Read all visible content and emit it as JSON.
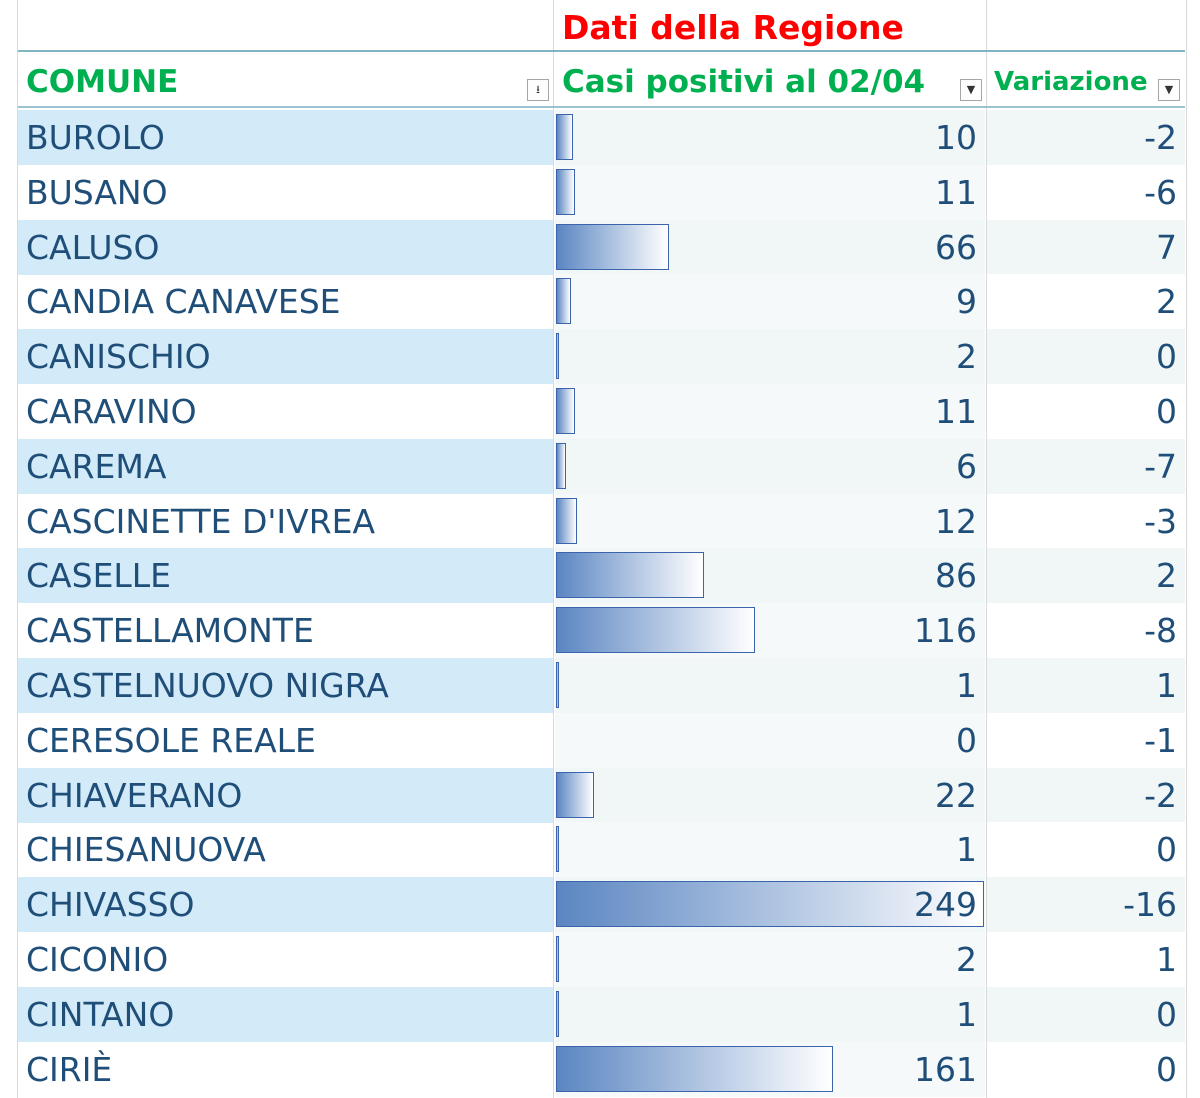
{
  "header": {
    "region_title": "Dati della Regione",
    "col_comune": "COMUNE",
    "col_casi": "Casi positivi al 02/04",
    "col_variazione": "Variazione",
    "filter_sort_glyph": "⭳",
    "filter_glyph": "▼"
  },
  "bar_max": 249,
  "rows": [
    {
      "comune": "BUROLO",
      "casi": 10,
      "variazione": "-2"
    },
    {
      "comune": "BUSANO",
      "casi": 11,
      "variazione": "-6"
    },
    {
      "comune": "CALUSO",
      "casi": 66,
      "variazione": "7"
    },
    {
      "comune": "CANDIA CANAVESE",
      "casi": 9,
      "variazione": "2"
    },
    {
      "comune": "CANISCHIO",
      "casi": 2,
      "variazione": "0"
    },
    {
      "comune": "CARAVINO",
      "casi": 11,
      "variazione": "0"
    },
    {
      "comune": "CAREMA",
      "casi": 6,
      "variazione": "-7"
    },
    {
      "comune": "CASCINETTE D'IVREA",
      "casi": 12,
      "variazione": "-3"
    },
    {
      "comune": "CASELLE",
      "casi": 86,
      "variazione": "2"
    },
    {
      "comune": "CASTELLAMONTE",
      "casi": 116,
      "variazione": "-8"
    },
    {
      "comune": "CASTELNUOVO NIGRA",
      "casi": 1,
      "variazione": "1"
    },
    {
      "comune": "CERESOLE REALE",
      "casi": 0,
      "variazione": "-1"
    },
    {
      "comune": "CHIAVERANO",
      "casi": 22,
      "variazione": "-2"
    },
    {
      "comune": "CHIESANUOVA",
      "casi": 1,
      "variazione": "0"
    },
    {
      "comune": "CHIVASSO",
      "casi": 249,
      "variazione": "-16"
    },
    {
      "comune": "CICONIO",
      "casi": 2,
      "variazione": "1"
    },
    {
      "comune": "CINTANO",
      "casi": 1,
      "variazione": "0"
    },
    {
      "comune": "CIRIÈ",
      "casi": 161,
      "variazione": "0"
    }
  ],
  "colors": {
    "region_title": "#ff0000",
    "header_text": "#00b050",
    "cell_text": "#1f4e79",
    "band_fill": "#d3ebf8",
    "bar_border": "#3b64ad",
    "bar_gradient_start": "#5b86c2"
  }
}
